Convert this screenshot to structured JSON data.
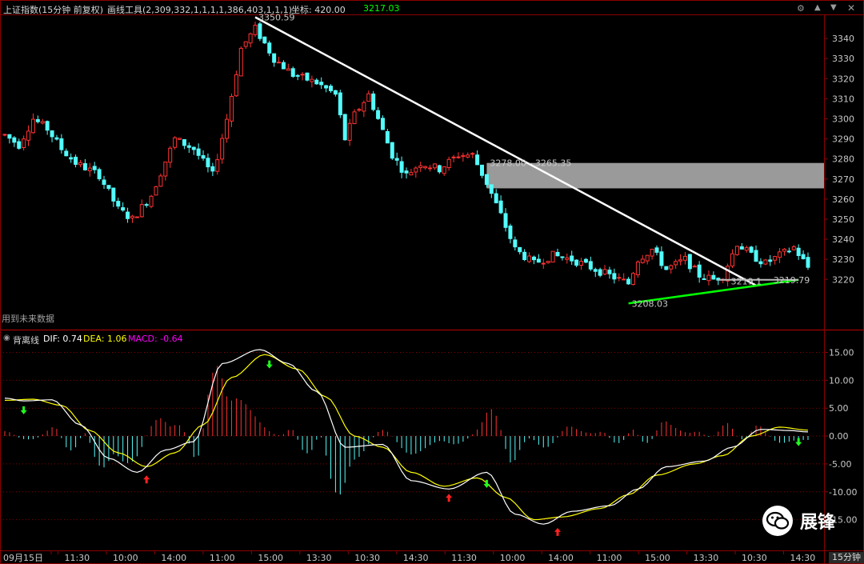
{
  "header": {
    "title": "上证指数(15分钟 前复权)",
    "tool_label": "画线工具(2,309,332,1,1,1,1,386,403,1,1,1)",
    "coord_label": "坐标: 420.00",
    "price_readout": "3217.03",
    "future_data_label": "用到未来数据"
  },
  "indicator_header": {
    "name": "背离线",
    "dif_label": "DIF: 0.74",
    "dea_label": "DEA: 1.06",
    "macd_label": "MACD: -0.64"
  },
  "timeframe_label": "15分钟",
  "watermark": {
    "name": "展锋"
  },
  "colors": {
    "up": "#ff3232",
    "down": "#54fcfc",
    "dif": "#ffffff",
    "dea": "#ffff00",
    "macd_label": "#ff00ff",
    "trendline": "#ffffff",
    "support_line": "#00ff00",
    "zone": "#9a9a9a",
    "grid": "#8b0000",
    "axis_text": "#c8c8c8"
  },
  "chart_data": [
    {
      "type": "candlestick",
      "ylim": [
        3195,
        3352
      ],
      "y_ticks": [
        3220,
        3230,
        3240,
        3250,
        3260,
        3270,
        3280,
        3290,
        3300,
        3310,
        3320,
        3330,
        3340
      ],
      "x_tick_labels": [
        "09月15日",
        "11:30",
        "10:00",
        "14:00",
        "11:00",
        "15:00",
        "13:30",
        "10:30",
        "14:30",
        "11:30",
        "10:00",
        "14:00",
        "11:00",
        "15:00",
        "13:30",
        "10:30",
        "14:30"
      ],
      "annotations": [
        {
          "text": "3350.59",
          "x": 53,
          "y": 3350.59
        },
        {
          "text": "3278.00 - 3265.35",
          "x": 102,
          "y": 3278.0
        },
        {
          "text": "3208.03",
          "x": 132,
          "y": 3208.03
        },
        {
          "text": "3219.1",
          "x": 153,
          "y": 3219.1
        },
        {
          "text": "3219.79",
          "x": 162,
          "y": 3219.79
        }
      ],
      "price_zone": {
        "low": 3265.35,
        "high": 3278.0,
        "x_from": 102
      },
      "trendlines": [
        {
          "name": "resistance",
          "from": {
            "x": 53,
            "y": 3350.59
          },
          "to": {
            "x": 159,
            "y": 3217.0
          }
        },
        {
          "name": "support",
          "from": {
            "x": 132,
            "y": 3208.03
          },
          "to": {
            "x": 168,
            "y": 3219.79
          }
        }
      ],
      "reference_line": {
        "y": 3219.79,
        "x_from": 151,
        "x_to": 168
      }
    },
    {
      "type": "macd",
      "ylim": [
        -20.5,
        16.5
      ],
      "y_ticks": [
        15.0,
        10.0,
        5.0,
        0.0,
        -5.0,
        -10.0,
        -15.0
      ],
      "dif": [
        {
          "x": 0,
          "y": 6.8
        },
        {
          "x": 4,
          "y": 6.3
        },
        {
          "x": 10,
          "y": 6.5
        },
        {
          "x": 16,
          "y": 2.0
        },
        {
          "x": 22,
          "y": -4.0
        },
        {
          "x": 28,
          "y": -6.5
        },
        {
          "x": 34,
          "y": -2.5
        },
        {
          "x": 40,
          "y": -1.0
        },
        {
          "x": 46,
          "y": 13.0
        },
        {
          "x": 54,
          "y": 15.5
        },
        {
          "x": 60,
          "y": 13.0
        },
        {
          "x": 66,
          "y": 8.0
        },
        {
          "x": 72,
          "y": -2.0
        },
        {
          "x": 80,
          "y": -1.5
        },
        {
          "x": 86,
          "y": -8.0
        },
        {
          "x": 94,
          "y": -9.5
        },
        {
          "x": 102,
          "y": -6.5
        },
        {
          "x": 108,
          "y": -14.0
        },
        {
          "x": 114,
          "y": -15.8
        },
        {
          "x": 120,
          "y": -13.5
        },
        {
          "x": 128,
          "y": -12.5
        },
        {
          "x": 134,
          "y": -9.5
        },
        {
          "x": 140,
          "y": -5.5
        },
        {
          "x": 148,
          "y": -4.5
        },
        {
          "x": 154,
          "y": -2.0
        },
        {
          "x": 160,
          "y": 1.2
        },
        {
          "x": 166,
          "y": 1.0
        },
        {
          "x": 170,
          "y": 0.74
        }
      ],
      "dea": [
        {
          "x": 0,
          "y": 6.4
        },
        {
          "x": 6,
          "y": 6.6
        },
        {
          "x": 12,
          "y": 5.5
        },
        {
          "x": 18,
          "y": 1.0
        },
        {
          "x": 24,
          "y": -3.0
        },
        {
          "x": 30,
          "y": -5.5
        },
        {
          "x": 36,
          "y": -3.0
        },
        {
          "x": 42,
          "y": 2.0
        },
        {
          "x": 48,
          "y": 10.5
        },
        {
          "x": 55,
          "y": 14.6
        },
        {
          "x": 62,
          "y": 12.0
        },
        {
          "x": 68,
          "y": 7.0
        },
        {
          "x": 74,
          "y": 0.0
        },
        {
          "x": 80,
          "y": -2.0
        },
        {
          "x": 86,
          "y": -6.5
        },
        {
          "x": 93,
          "y": -9.0
        },
        {
          "x": 100,
          "y": -7.5
        },
        {
          "x": 106,
          "y": -11.0
        },
        {
          "x": 112,
          "y": -15.0
        },
        {
          "x": 118,
          "y": -14.5
        },
        {
          "x": 126,
          "y": -13.0
        },
        {
          "x": 132,
          "y": -10.5
        },
        {
          "x": 138,
          "y": -7.0
        },
        {
          "x": 146,
          "y": -5.0
        },
        {
          "x": 152,
          "y": -3.5
        },
        {
          "x": 158,
          "y": 0.0
        },
        {
          "x": 164,
          "y": 1.6
        },
        {
          "x": 170,
          "y": 1.06
        }
      ],
      "arrows": [
        {
          "dir": "down",
          "x": 4,
          "y": 6.2
        },
        {
          "dir": "up",
          "x": 30,
          "y": -6.2
        },
        {
          "dir": "down",
          "x": 56,
          "y": 14.4
        },
        {
          "dir": "up",
          "x": 94,
          "y": -9.5
        },
        {
          "dir": "down",
          "x": 102,
          "y": -7.0
        },
        {
          "dir": "up",
          "x": 117,
          "y": -15.6
        },
        {
          "dir": "down",
          "x": 168,
          "y": 0.5
        }
      ]
    }
  ]
}
